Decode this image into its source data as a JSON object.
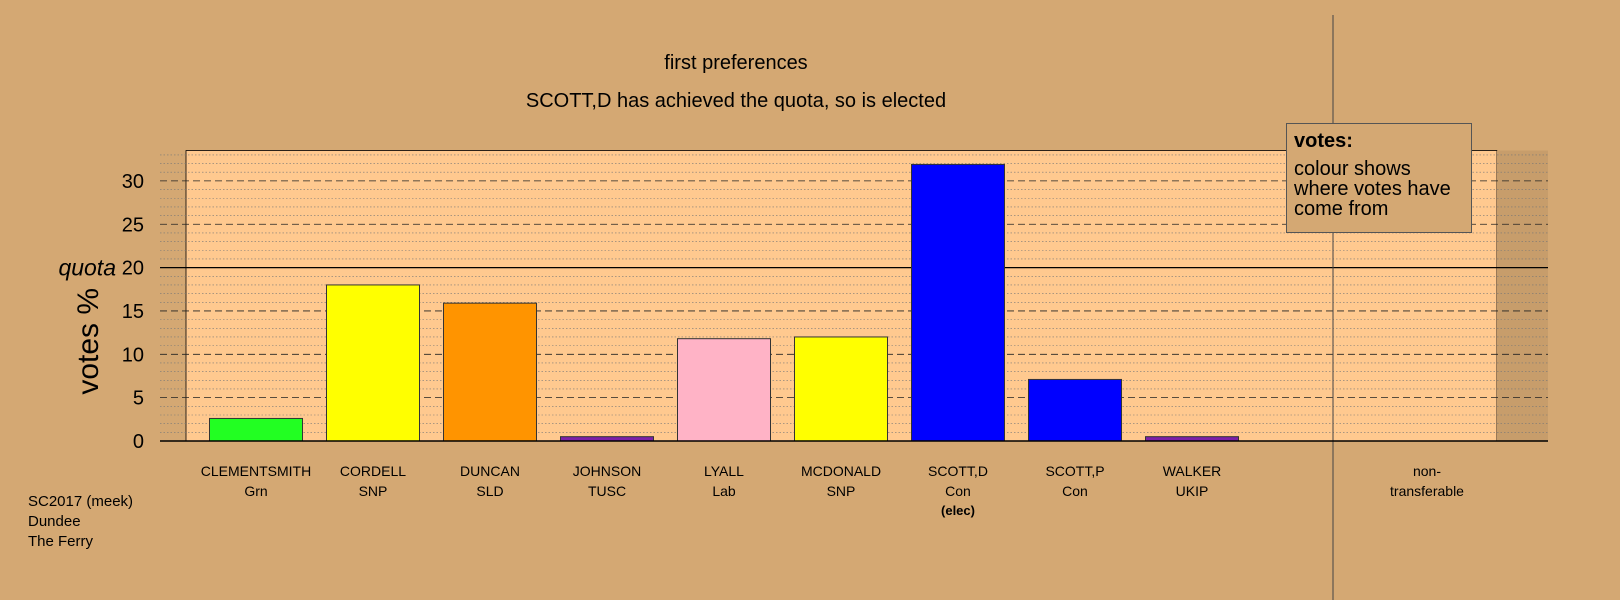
{
  "title": "first preferences",
  "subtitle": "SCOTT,D has achieved the quota, so is elected",
  "info": [
    "SC2017 (meek)",
    "Dundee",
    "The Ferry"
  ],
  "legend": {
    "title": "votes:",
    "body": "colour shows where votes have come from"
  },
  "chart_data": {
    "type": "bar",
    "ylabel": "votes %",
    "ylim": [
      0,
      33.5
    ],
    "yticks": [
      0,
      5,
      10,
      15,
      20,
      25,
      30
    ],
    "quota": {
      "label": "quota",
      "value": 20
    },
    "grid": true,
    "bars": [
      {
        "name": "CLEMENTSMITH",
        "party": "Grn",
        "value": 2.6,
        "color": "#22FF22"
      },
      {
        "name": "CORDELL",
        "party": "SNP",
        "value": 18.0,
        "color": "#FFFF00"
      },
      {
        "name": "DUNCAN",
        "party": "SLD",
        "value": 15.9,
        "color": "#FF9400"
      },
      {
        "name": "JOHNSON",
        "party": "TUSC",
        "value": 0.5,
        "color": "#7B20A8"
      },
      {
        "name": "LYALL",
        "party": "Lab",
        "value": 11.8,
        "color": "#FFB3C6"
      },
      {
        "name": "MCDONALD",
        "party": "SNP",
        "value": 12.0,
        "color": "#FFFF00"
      },
      {
        "name": "SCOTT,D",
        "party": "Con",
        "value": 31.9,
        "color": "#0000FF",
        "note": "(elec)"
      },
      {
        "name": "SCOTT,P",
        "party": "Con",
        "value": 7.1,
        "color": "#0000FF"
      },
      {
        "name": "WALKER",
        "party": "UKIP",
        "value": 0.5,
        "color": "#7B20A8"
      }
    ],
    "nontransferable": {
      "label_line1": "non-",
      "label_line2": "transferable",
      "value": 0
    }
  }
}
